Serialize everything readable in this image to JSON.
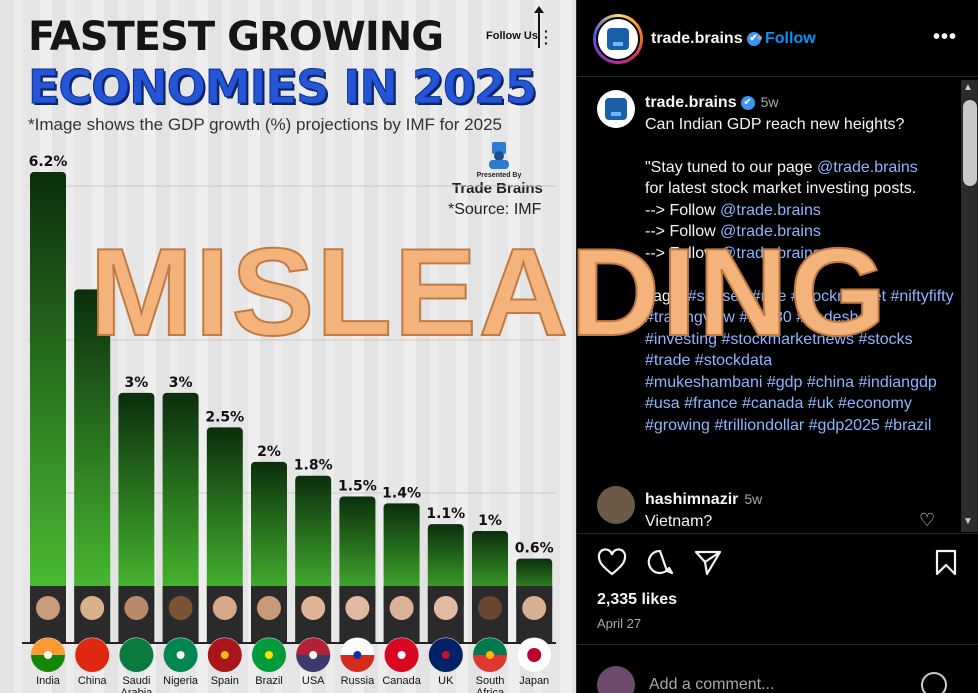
{
  "overlay_text": "MISLEADING",
  "infographic": {
    "title_line_1": "FASTEST GROWING",
    "title_line_2": "ECONOMIES IN 2025",
    "subtitle": "*Image shows the GDP growth (%) projections by IMF for 2025",
    "follow_us": "Follow Us",
    "presented_by": "Presented By",
    "brand_name": "Trade Brains",
    "source": "*Source: IMF",
    "colors": {
      "bar_top": "#0b2e0d",
      "bar_bottom": "#4cc233",
      "title_blue": "#2455d6"
    }
  },
  "chart_data": {
    "type": "bar",
    "categories": [
      "India",
      "China",
      "Saudi Arabia",
      "Nigeria",
      "Spain",
      "Brazil",
      "USA",
      "Russia",
      "Canada",
      "UK",
      "South Africa",
      "Japan"
    ],
    "values": [
      6.2,
      4.5,
      3,
      3,
      2.5,
      2,
      1.8,
      1.5,
      1.4,
      1.1,
      1,
      0.6
    ],
    "labels": [
      "6.2%",
      "",
      "3%",
      "3%",
      "2.5%",
      "2%",
      "1.8%",
      "1.5%",
      "1.4%",
      "1.1%",
      "1%",
      "0.6%"
    ],
    "title": "FASTEST GROWING ECONOMIES IN 2025",
    "ylim": [
      0,
      6.2
    ]
  },
  "sidebar": {
    "header": {
      "username": "trade.brains",
      "verified": "✔",
      "dot": "•",
      "follow": "Follow",
      "more": "•••"
    },
    "caption": {
      "username": "trade.brains",
      "time": "5w",
      "line_1": "Can Indian GDP reach new heights?",
      "line_2a": "\"Stay tuned to our page ",
      "mention_1": "@trade.brains",
      "line_2b": "for latest stock market investing posts.",
      "follow_prefix": "--> Follow ",
      "mention_2": "@trade.brains",
      "mention_3": "@trade.brains",
      "mention_4": "@trade.brains",
      "tags_prefix": "Tags: ",
      "tags_hidden": "#sensex #nse #stockmarket #niftyfifty #tradingview #bse30 #tradeshow #investing #stockmarketnews #stocks #trade #stockdata",
      "tags_visible": "#mukeshambani #gdp #china #indiangdp #usa #france #canada #uk #economy #growing #trilliondollar #gdp2025 #brazil"
    },
    "comment": {
      "username": "hashimnazir",
      "time": "5w",
      "text": "Vietnam?"
    },
    "likes": "2,335 likes",
    "date": "April 27",
    "comment_placeholder": "Add a comment..."
  }
}
